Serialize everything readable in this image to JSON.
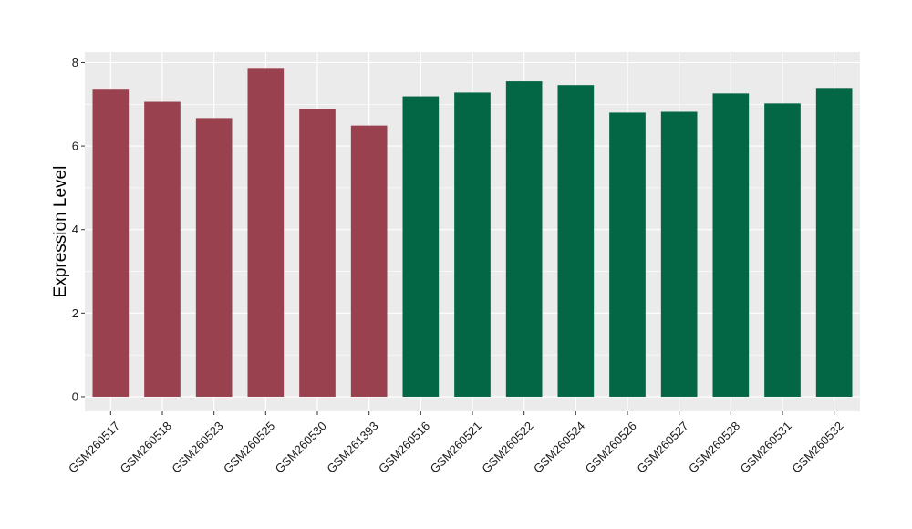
{
  "chart_data": {
    "type": "bar",
    "title": "",
    "xlabel": "",
    "ylabel": "Expression Level",
    "ylim": [
      -0.35,
      8.25
    ],
    "yticks": [
      0,
      2,
      4,
      6,
      8
    ],
    "grid": true,
    "categories": [
      "GSM260517",
      "GSM260518",
      "GSM260523",
      "GSM260525",
      "GSM260530",
      "GSM261393",
      "GSM260516",
      "GSM260521",
      "GSM260522",
      "GSM260524",
      "GSM260526",
      "GSM260527",
      "GSM260528",
      "GSM260531",
      "GSM260532"
    ],
    "values": [
      7.35,
      7.06,
      6.67,
      7.85,
      6.88,
      6.49,
      7.19,
      7.28,
      7.55,
      7.46,
      6.8,
      6.82,
      7.26,
      7.02,
      7.37
    ],
    "groups": [
      0,
      0,
      0,
      0,
      0,
      0,
      1,
      1,
      1,
      1,
      1,
      1,
      1,
      1,
      1
    ],
    "group_colors": [
      "#9a414f",
      "#036644"
    ],
    "panel_background": "#ebebeb",
    "grid_color": "#ffffff"
  }
}
